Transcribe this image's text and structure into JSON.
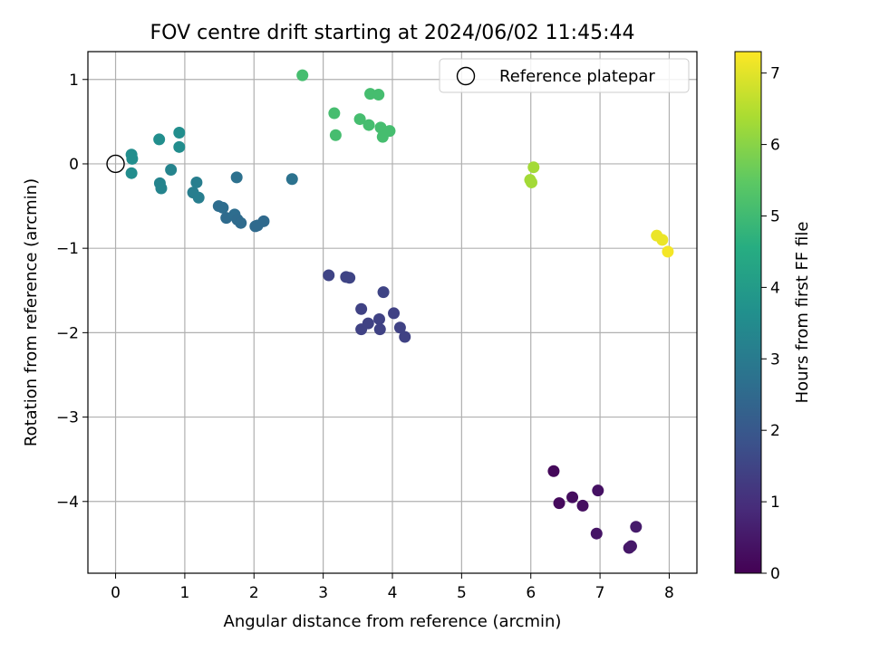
{
  "chart_data": {
    "type": "scatter",
    "title": "FOV centre drift starting at 2024/06/02 11:45:44",
    "xlabel": "Angular distance from reference (arcmin)",
    "ylabel": "Rotation from reference (arcmin)",
    "xlim": [
      -0.4,
      8.4
    ],
    "ylim": [
      -4.85,
      1.33
    ],
    "xticks": [
      0,
      1,
      2,
      3,
      4,
      5,
      6,
      7,
      8
    ],
    "yticks": [
      1,
      0,
      -1,
      -2,
      -3,
      -4
    ],
    "grid": true,
    "legend": {
      "position": "upper right",
      "entries": [
        "Reference platepar"
      ]
    },
    "reference_point": {
      "x": 0,
      "y": 0,
      "marker": "open-circle"
    },
    "colorbar": {
      "label": "Hours from first FF file",
      "colormap": "viridis",
      "range": [
        0,
        7.3
      ],
      "ticks": [
        0,
        1,
        2,
        3,
        4,
        5,
        6,
        7
      ]
    },
    "points": [
      {
        "x": 6.33,
        "y": -3.64,
        "h": 0.15
      },
      {
        "x": 6.41,
        "y": -4.02,
        "h": 0.2
      },
      {
        "x": 6.6,
        "y": -3.95,
        "h": 0.25
      },
      {
        "x": 6.75,
        "y": -4.05,
        "h": 0.3
      },
      {
        "x": 6.97,
        "y": -3.87,
        "h": 0.35
      },
      {
        "x": 6.95,
        "y": -4.38,
        "h": 0.4
      },
      {
        "x": 7.42,
        "y": -4.55,
        "h": 0.45
      },
      {
        "x": 7.45,
        "y": -4.53,
        "h": 0.5
      },
      {
        "x": 7.52,
        "y": -4.3,
        "h": 0.55
      },
      {
        "x": 3.08,
        "y": -1.32,
        "h": 1.5
      },
      {
        "x": 3.33,
        "y": -1.34,
        "h": 1.5
      },
      {
        "x": 3.38,
        "y": -1.35,
        "h": 1.5
      },
      {
        "x": 3.55,
        "y": -1.72,
        "h": 1.45
      },
      {
        "x": 3.55,
        "y": -1.96,
        "h": 1.45
      },
      {
        "x": 3.65,
        "y": -1.89,
        "h": 1.45
      },
      {
        "x": 3.81,
        "y": -1.84,
        "h": 1.45
      },
      {
        "x": 3.82,
        "y": -1.96,
        "h": 1.45
      },
      {
        "x": 3.87,
        "y": -1.52,
        "h": 1.5
      },
      {
        "x": 4.02,
        "y": -1.77,
        "h": 1.45
      },
      {
        "x": 4.11,
        "y": -1.94,
        "h": 1.45
      },
      {
        "x": 4.18,
        "y": -2.05,
        "h": 1.45
      },
      {
        "x": 1.49,
        "y": -0.5,
        "h": 2.6
      },
      {
        "x": 1.55,
        "y": -0.52,
        "h": 2.6
      },
      {
        "x": 1.6,
        "y": -0.64,
        "h": 2.55
      },
      {
        "x": 1.72,
        "y": -0.6,
        "h": 2.6
      },
      {
        "x": 1.76,
        "y": -0.66,
        "h": 2.55
      },
      {
        "x": 1.81,
        "y": -0.7,
        "h": 2.55
      },
      {
        "x": 2.02,
        "y": -0.74,
        "h": 2.5
      },
      {
        "x": 2.05,
        "y": -0.73,
        "h": 2.5
      },
      {
        "x": 2.14,
        "y": -0.68,
        "h": 2.5
      },
      {
        "x": 1.75,
        "y": -0.16,
        "h": 2.7
      },
      {
        "x": 2.55,
        "y": -0.18,
        "h": 2.75
      },
      {
        "x": 0.23,
        "y": 0.11,
        "h": 3.6
      },
      {
        "x": 0.24,
        "y": 0.06,
        "h": 3.6
      },
      {
        "x": 0.23,
        "y": -0.11,
        "h": 3.55
      },
      {
        "x": 0.63,
        "y": 0.29,
        "h": 3.6
      },
      {
        "x": 0.92,
        "y": 0.37,
        "h": 3.6
      },
      {
        "x": 0.92,
        "y": 0.2,
        "h": 3.55
      },
      {
        "x": 0.8,
        "y": -0.07,
        "h": 3.3
      },
      {
        "x": 0.64,
        "y": -0.23,
        "h": 3.3
      },
      {
        "x": 0.66,
        "y": -0.29,
        "h": 3.3
      },
      {
        "x": 1.17,
        "y": -0.22,
        "h": 3.1
      },
      {
        "x": 1.12,
        "y": -0.34,
        "h": 3.1
      },
      {
        "x": 1.2,
        "y": -0.4,
        "h": 3.1
      },
      {
        "x": 2.7,
        "y": 1.05,
        "h": 5.1
      },
      {
        "x": 3.16,
        "y": 0.6,
        "h": 5.1
      },
      {
        "x": 3.18,
        "y": 0.34,
        "h": 5.1
      },
      {
        "x": 3.53,
        "y": 0.53,
        "h": 5.1
      },
      {
        "x": 3.68,
        "y": 0.83,
        "h": 5.1
      },
      {
        "x": 3.8,
        "y": 0.82,
        "h": 5.1
      },
      {
        "x": 3.66,
        "y": 0.46,
        "h": 5.1
      },
      {
        "x": 3.83,
        "y": 0.43,
        "h": 5.1
      },
      {
        "x": 3.88,
        "y": 0.38,
        "h": 5.1
      },
      {
        "x": 3.96,
        "y": 0.39,
        "h": 5.1
      },
      {
        "x": 3.86,
        "y": 0.32,
        "h": 5.1
      },
      {
        "x": 6.04,
        "y": -0.04,
        "h": 6.3
      },
      {
        "x": 5.99,
        "y": -0.19,
        "h": 6.3
      },
      {
        "x": 6.01,
        "y": -0.22,
        "h": 6.3
      },
      {
        "x": 7.82,
        "y": -0.85,
        "h": 7.1
      },
      {
        "x": 7.9,
        "y": -0.9,
        "h": 7.1
      },
      {
        "x": 7.98,
        "y": -1.04,
        "h": 7.2
      }
    ]
  }
}
